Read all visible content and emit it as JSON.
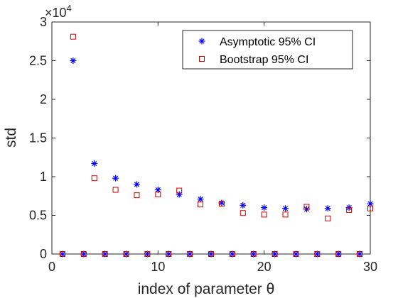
{
  "chart_data": {
    "type": "scatter",
    "xlabel": "index of parameter θ",
    "ylabel": "std",
    "xlim": [
      0,
      30
    ],
    "ylim": [
      0,
      30000
    ],
    "x_ticks": [
      "0",
      "10",
      "20",
      "30"
    ],
    "y_ticks": [
      "0",
      "0.5",
      "1",
      "1.5",
      "2",
      "2.5",
      "3"
    ],
    "y_exponent_base": "×10",
    "y_exponent_power": "4",
    "legend_position": "top-right",
    "grid": false,
    "series": [
      {
        "name": "Asymptotic 95% CI",
        "marker": "asterisk",
        "color": "#0000ff",
        "x": [
          1,
          2,
          3,
          4,
          5,
          6,
          7,
          8,
          9,
          10,
          11,
          12,
          13,
          14,
          15,
          16,
          17,
          18,
          19,
          20,
          21,
          22,
          23,
          24,
          25,
          26,
          27,
          28,
          29,
          30
        ],
        "y": [
          0,
          25000,
          0,
          11700,
          0,
          9800,
          0,
          9000,
          0,
          8300,
          0,
          7700,
          0,
          7100,
          0,
          6600,
          0,
          6300,
          0,
          6000,
          0,
          5900,
          0,
          5800,
          0,
          5900,
          0,
          6000,
          0,
          6500
        ]
      },
      {
        "name": "Bootstrap 95% CI",
        "marker": "square",
        "color": "#cc0000",
        "x": [
          1,
          2,
          3,
          4,
          5,
          6,
          7,
          8,
          9,
          10,
          11,
          12,
          13,
          14,
          15,
          16,
          17,
          18,
          19,
          20,
          21,
          22,
          23,
          24,
          25,
          26,
          27,
          28,
          29,
          30
        ],
        "y": [
          0,
          28100,
          0,
          9800,
          0,
          8300,
          0,
          7600,
          0,
          7700,
          0,
          8200,
          0,
          6400,
          0,
          6500,
          0,
          5300,
          0,
          5100,
          0,
          5100,
          0,
          6100,
          0,
          4600,
          0,
          5700,
          0,
          5900
        ]
      }
    ]
  }
}
